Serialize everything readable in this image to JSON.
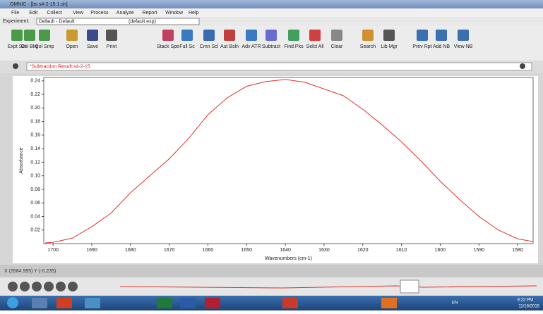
{
  "window": {
    "title": "OMNIC - [bs s4-2-15 1.sh]",
    "menu": [
      "File",
      "Edit",
      "Collect",
      "View",
      "Process",
      "Analyze",
      "Report",
      "Window",
      "Help"
    ],
    "experiment": {
      "label": "Experiment:",
      "value": "Default - Default",
      "file": "(default.exp)"
    },
    "toolbar": [
      "Expt Set",
      "Col Bkg",
      "Col Smp",
      "Open",
      "Save",
      "Print",
      "Stack Spe",
      "Full Sc",
      "Cmn Scl",
      "Aut Bsln",
      "Adv ATR",
      "Subtract",
      "Find Pks",
      "Selct All",
      "Clear",
      "Search",
      "Lib Mgr",
      "Prev Rpt",
      "Add NB",
      "View NB"
    ],
    "spectrum_title": "*Subtraction Result:s4-2-15",
    "status": "X (3584.955) Y (-0.235)",
    "taskbar": {
      "lang": "EN",
      "time": "8:22 PM",
      "date": "11/18/2015"
    }
  },
  "chart_data": {
    "type": "line",
    "xlabel": "Wavenumbers (cm-1)",
    "ylabel": "Absorbance",
    "color": "#e0302a",
    "x": [
      1702,
      1700,
      1695,
      1690,
      1685,
      1680,
      1675,
      1670,
      1665,
      1660,
      1655,
      1650,
      1645,
      1640,
      1635,
      1630,
      1625,
      1620,
      1615,
      1610,
      1605,
      1600,
      1595,
      1590,
      1585,
      1580,
      1576
    ],
    "values": [
      0.001,
      0.002,
      0.008,
      0.025,
      0.045,
      0.075,
      0.1,
      0.125,
      0.155,
      0.19,
      0.215,
      0.232,
      0.239,
      0.242,
      0.238,
      0.228,
      0.218,
      0.198,
      0.175,
      0.15,
      0.122,
      0.092,
      0.065,
      0.04,
      0.02,
      0.007,
      0.003
    ],
    "xlim": [
      1702.4,
      1576
    ],
    "ylim": [
      0,
      0.245
    ],
    "xticks": [
      1700,
      1690,
      1680,
      1670,
      1660,
      1650,
      1640,
      1630,
      1620,
      1610,
      1600,
      1590,
      1580
    ],
    "yticks": [
      0.02,
      0.04,
      0.06,
      0.08,
      {
        "value": 0.1,
        "label": "0.10"
      },
      0.12,
      0.14,
      0.16,
      0.18,
      {
        "value": 0.2,
        "label": "0.20"
      },
      0.22,
      0.24
    ]
  }
}
